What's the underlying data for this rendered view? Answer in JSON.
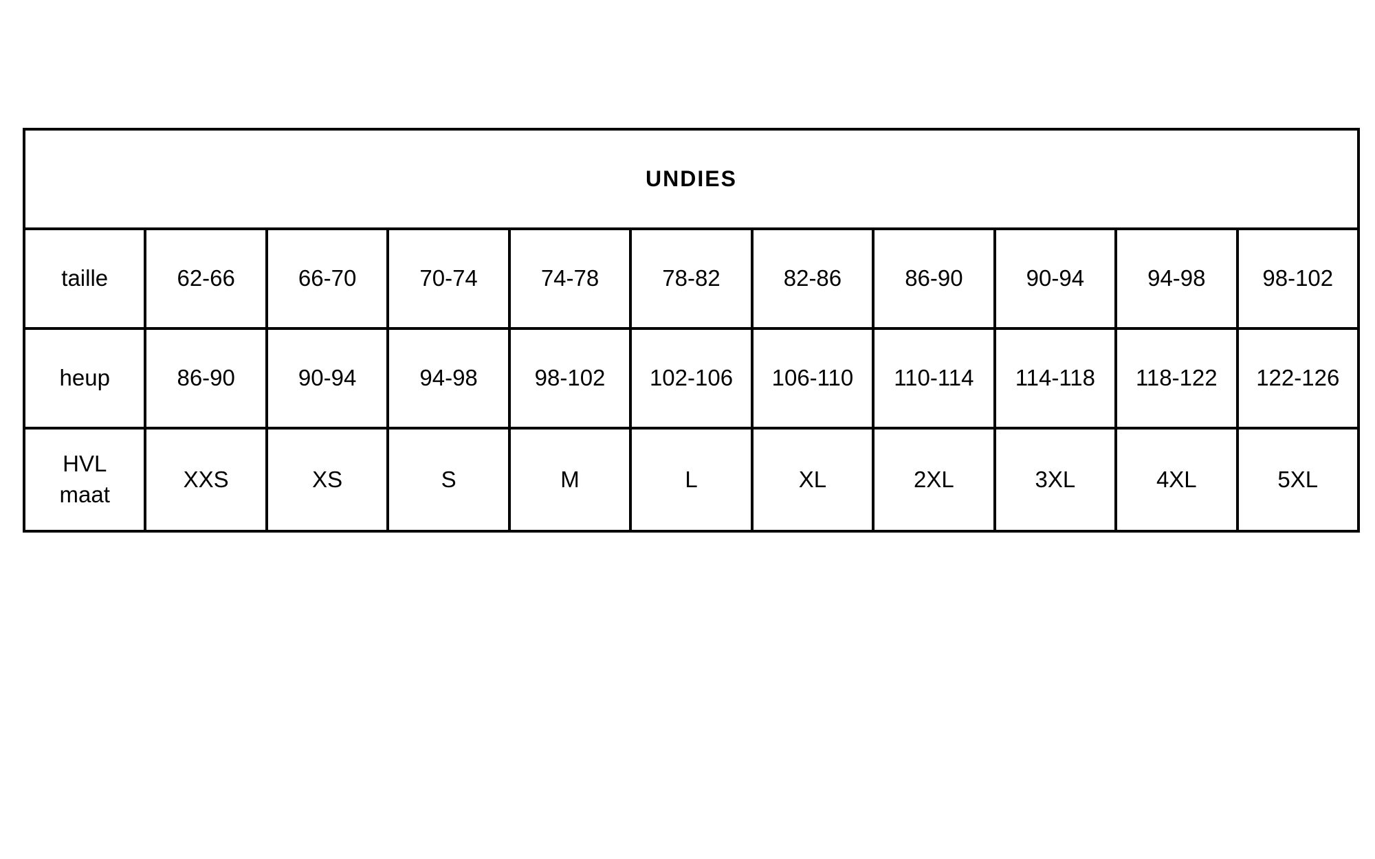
{
  "table": {
    "title": "UNDIES",
    "rows": [
      {
        "label": "taille",
        "cells": [
          "62-66",
          "66-70",
          "70-74",
          "74-78",
          "78-82",
          "82-86",
          "86-90",
          "90-94",
          "94-98",
          "98-102"
        ]
      },
      {
        "label": "heup",
        "cells": [
          "86-90",
          "90-94",
          "94-98",
          "98-102",
          "102-106",
          "106-110",
          "110-114",
          "114-118",
          "118-122",
          "122-126"
        ]
      },
      {
        "label_line1": "HVL",
        "label_line2": "maat",
        "cells": [
          "XXS",
          "XS",
          "S",
          "M",
          "L",
          "XL",
          "2XL",
          "3XL",
          "4XL",
          "5XL"
        ]
      }
    ]
  }
}
